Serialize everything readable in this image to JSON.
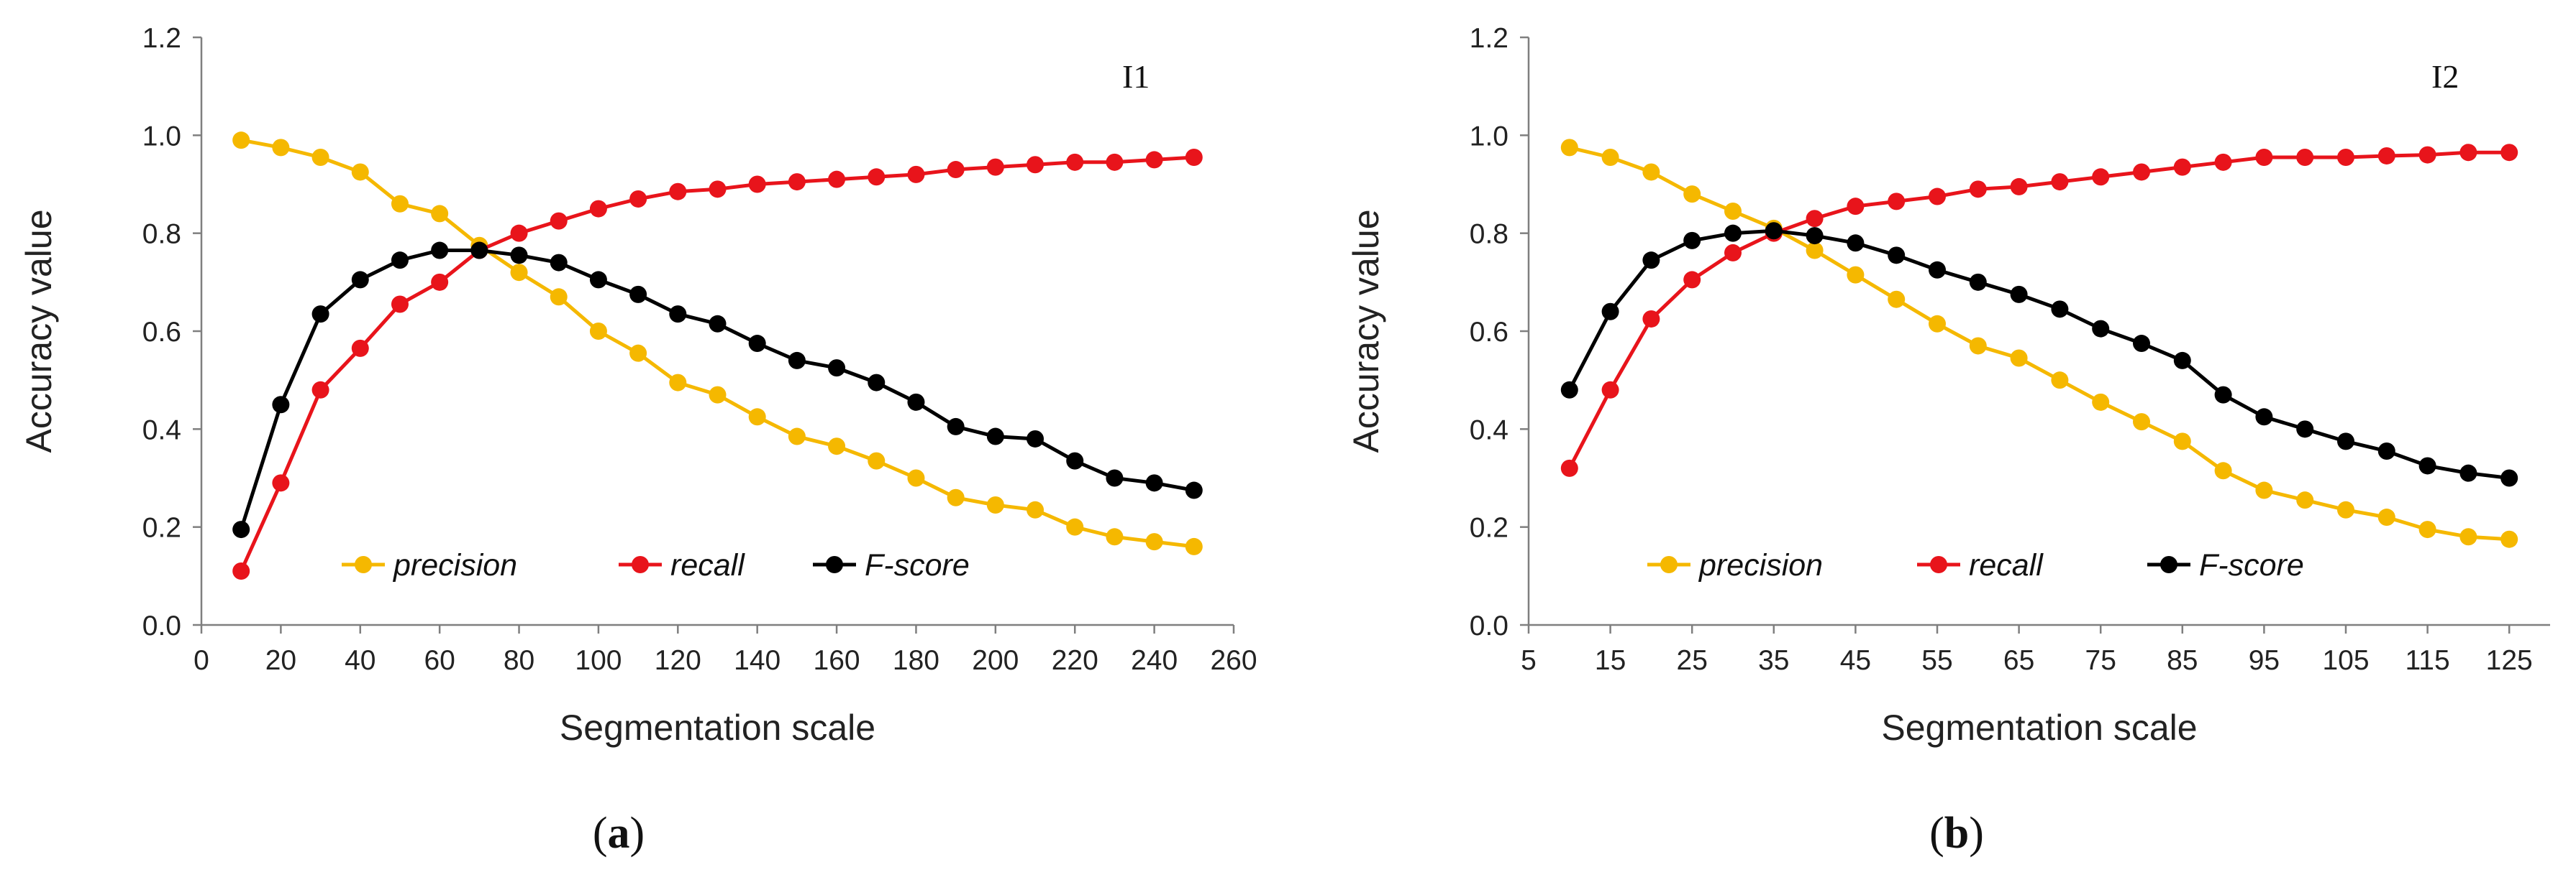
{
  "chart_data": [
    {
      "type": "line",
      "panel_label": "I1",
      "caption_open": "(",
      "caption_letter": "a",
      "caption_close": ")",
      "xlabel": "Segmentation scale",
      "ylabel": "Accuracy value",
      "xlim": [
        0,
        260
      ],
      "ylim": [
        0.0,
        1.2
      ],
      "x_ticks": [
        0,
        20,
        40,
        60,
        80,
        100,
        120,
        140,
        160,
        180,
        200,
        220,
        240,
        260
      ],
      "y_ticks": [
        "0.0",
        "0.2",
        "0.4",
        "0.6",
        "0.8",
        "1.0",
        "1.2"
      ],
      "grid": false,
      "legend_position": "bottom-center",
      "x": [
        10,
        20,
        30,
        40,
        50,
        60,
        70,
        80,
        90,
        100,
        110,
        120,
        130,
        140,
        150,
        160,
        170,
        180,
        190,
        200,
        210,
        220,
        230,
        240,
        250
      ],
      "series": [
        {
          "name": "precision",
          "color": "#F5B800",
          "values": [
            0.99,
            0.975,
            0.955,
            0.925,
            0.86,
            0.84,
            0.775,
            0.72,
            0.67,
            0.6,
            0.555,
            0.495,
            0.47,
            0.425,
            0.385,
            0.365,
            0.335,
            0.3,
            0.26,
            0.245,
            0.235,
            0.2,
            0.18,
            0.17,
            0.16
          ]
        },
        {
          "name": "recall",
          "color": "#E8141B",
          "values": [
            0.11,
            0.29,
            0.48,
            0.565,
            0.655,
            0.7,
            0.765,
            0.8,
            0.825,
            0.85,
            0.87,
            0.885,
            0.89,
            0.9,
            0.905,
            0.91,
            0.915,
            0.92,
            0.93,
            0.935,
            0.94,
            0.945,
            0.945,
            0.95,
            0.955
          ]
        },
        {
          "name": "F-score",
          "color": "#000000",
          "values": [
            0.195,
            0.45,
            0.635,
            0.705,
            0.745,
            0.765,
            0.765,
            0.755,
            0.74,
            0.705,
            0.675,
            0.635,
            0.615,
            0.575,
            0.54,
            0.525,
            0.495,
            0.455,
            0.405,
            0.385,
            0.38,
            0.335,
            0.3,
            0.29,
            0.275
          ]
        }
      ]
    },
    {
      "type": "line",
      "panel_label": "I2",
      "caption_open": "(",
      "caption_letter": "b",
      "caption_close": ")",
      "xlabel": "Segmentation scale",
      "ylabel": "Accuracy value",
      "xlim": [
        5,
        130
      ],
      "ylim": [
        0.0,
        1.2
      ],
      "x_ticks": [
        5,
        15,
        25,
        35,
        45,
        55,
        65,
        75,
        85,
        95,
        105,
        115,
        125
      ],
      "y_ticks": [
        "0.0",
        "0.2",
        "0.4",
        "0.6",
        "0.8",
        "1.0",
        "1.2"
      ],
      "grid": false,
      "legend_position": "bottom-center",
      "x": [
        10,
        15,
        20,
        25,
        30,
        35,
        40,
        45,
        50,
        55,
        60,
        65,
        70,
        75,
        80,
        85,
        90,
        95,
        100,
        105,
        110,
        115,
        120,
        125
      ],
      "series": [
        {
          "name": "precision",
          "color": "#F5B800",
          "values": [
            0.975,
            0.955,
            0.925,
            0.88,
            0.845,
            0.81,
            0.765,
            0.715,
            0.665,
            0.615,
            0.57,
            0.545,
            0.5,
            0.455,
            0.415,
            0.375,
            0.315,
            0.275,
            0.255,
            0.235,
            0.22,
            0.195,
            0.18,
            0.175
          ]
        },
        {
          "name": "recall",
          "color": "#E8141B",
          "values": [
            0.32,
            0.48,
            0.625,
            0.705,
            0.76,
            0.8,
            0.83,
            0.855,
            0.865,
            0.875,
            0.89,
            0.895,
            0.905,
            0.915,
            0.925,
            0.935,
            0.945,
            0.955,
            0.955,
            0.955,
            0.958,
            0.96,
            0.965,
            0.965
          ]
        },
        {
          "name": "F-score",
          "color": "#000000",
          "values": [
            0.48,
            0.64,
            0.745,
            0.785,
            0.8,
            0.805,
            0.795,
            0.78,
            0.755,
            0.725,
            0.7,
            0.675,
            0.645,
            0.605,
            0.575,
            0.54,
            0.47,
            0.425,
            0.4,
            0.375,
            0.355,
            0.325,
            0.31,
            0.3
          ]
        }
      ]
    }
  ]
}
